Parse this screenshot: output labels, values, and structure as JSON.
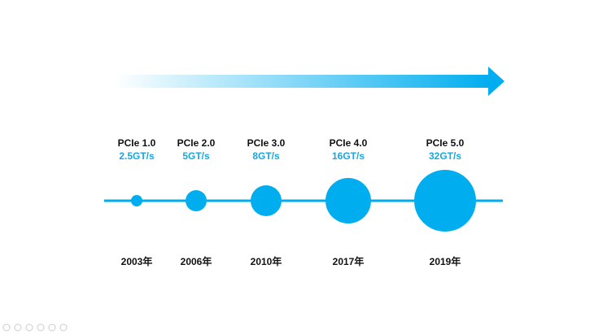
{
  "timeline": {
    "items": [
      {
        "name": "PCIe 1.0",
        "speed": "2.5GT/s",
        "year": "2003年"
      },
      {
        "name": "PCIe 2.0",
        "speed": "5GT/s",
        "year": "2006年"
      },
      {
        "name": "PCIe 3.0",
        "speed": "8GT/s",
        "year": "2010年"
      },
      {
        "name": "PCIe 4.0",
        "speed": "16GT/s",
        "year": "2017年"
      },
      {
        "name": "PCIe 5.0",
        "speed": "32GT/s",
        "year": "2019年"
      }
    ]
  }
}
